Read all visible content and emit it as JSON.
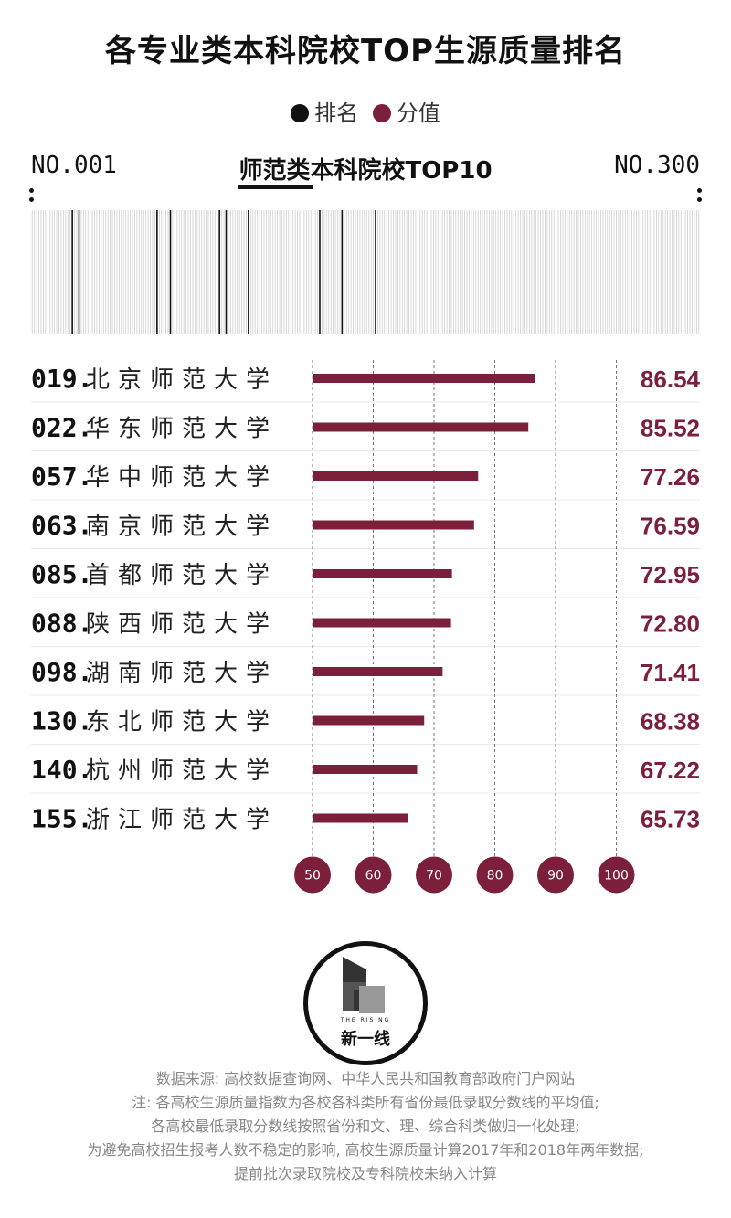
{
  "title": "各专业类本科院校TOP生源质量排名",
  "legend": {
    "rank": "排名",
    "score": "分值"
  },
  "colors": {
    "rank": "#111111",
    "score": "#7b1f3a",
    "grid": "#9a9a9a"
  },
  "rank_start": "NO.001",
  "rank_end": "NO.300",
  "subtitle": "师范类本科院校TOP10",
  "chart_data": {
    "type": "bar",
    "orientation": "horizontal",
    "categories": [
      "北京师范大学",
      "华东师范大学",
      "华中师范大学",
      "南京师范大学",
      "首都师范大学",
      "陕西师范大学",
      "湖南师范大学",
      "东北师范大学",
      "杭州师范大学",
      "浙江师范大学"
    ],
    "ranks": [
      "019",
      "022",
      "057",
      "063",
      "085",
      "088",
      "098",
      "130",
      "140",
      "155"
    ],
    "values": [
      86.54,
      85.52,
      77.26,
      76.59,
      72.95,
      72.8,
      71.41,
      68.38,
      67.22,
      65.73
    ],
    "value_labels": [
      "86.54",
      "85.52",
      "77.26",
      "76.59",
      "72.95",
      "72.80",
      "71.41",
      "68.38",
      "67.22",
      "65.73"
    ],
    "xlim": [
      50,
      100
    ],
    "xticks": [
      "50",
      "60",
      "70",
      "80",
      "90",
      "100"
    ],
    "rank_range": [
      1,
      300
    ],
    "grid": true
  },
  "logo": {
    "text": "新一线",
    "small": "THE RISING"
  },
  "notes": [
    "数据来源: 高校数据查询网、中华人民共和国教育部政府门户网站",
    "注: 各高校生源质量指数为各校各科类所有省份最低录取分数线的平均值;",
    "各高校最低录取分数线按照省份和文、理、综合科类做归一化处理;",
    "为避免高校招生报考人数不稳定的影响, 高校生源质量计算2017年和2018年两年数据;",
    "提前批次录取院校及专科院校未纳入计算"
  ]
}
